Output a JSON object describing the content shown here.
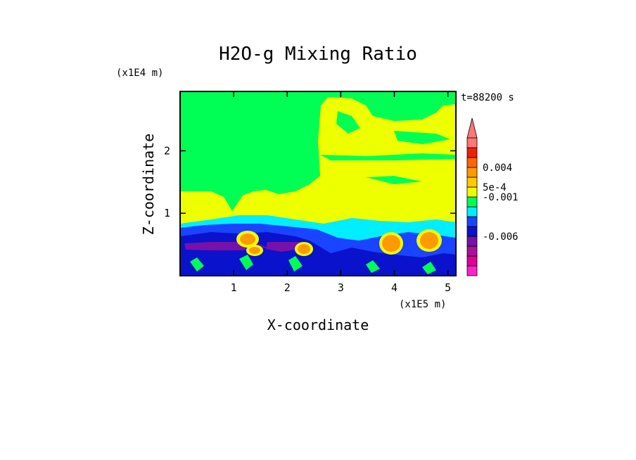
{
  "chart_data": {
    "type": "heatmap",
    "title": "H2O-g Mixing Ratio",
    "xlabel": "X-coordinate",
    "ylabel": "Z-coordinate",
    "x_scale_note": "(x1E5 m)",
    "y_scale_note": "(x1E4 m)",
    "time_label": "t=88200 s",
    "xlim": [
      0,
      5.15
    ],
    "ylim": [
      0,
      2.95
    ],
    "x_ticks": [
      "1",
      "2",
      "3",
      "4",
      "5"
    ],
    "y_ticks": [
      "1",
      "2"
    ],
    "colorbar": {
      "levels": [
        "#ff22cc",
        "#dd0099",
        "#aa1199",
        "#7711aa",
        "#0a12cc",
        "#1a44ff",
        "#00eeff",
        "#00ff55",
        "#eeff00",
        "#ffcc00",
        "#ff9900",
        "#ff6600",
        "#ee2200",
        "#ff7777"
      ],
      "labels": [
        "0.004",
        "5e-4",
        "-0.001",
        "-0.006"
      ],
      "extend": "max"
    },
    "regions": [
      {
        "name": "upper-air",
        "color": "#00ff55"
      },
      {
        "name": "moist-layer",
        "color": "#eeff00"
      },
      {
        "name": "boundary",
        "color": "#00eeff"
      },
      {
        "name": "dry-blue",
        "color": "#1a44ff"
      },
      {
        "name": "dark-blue",
        "color": "#0a12cc"
      },
      {
        "name": "purple-core",
        "color": "#7711aa"
      },
      {
        "name": "orange-cells",
        "color": "#ff9900"
      }
    ]
  }
}
